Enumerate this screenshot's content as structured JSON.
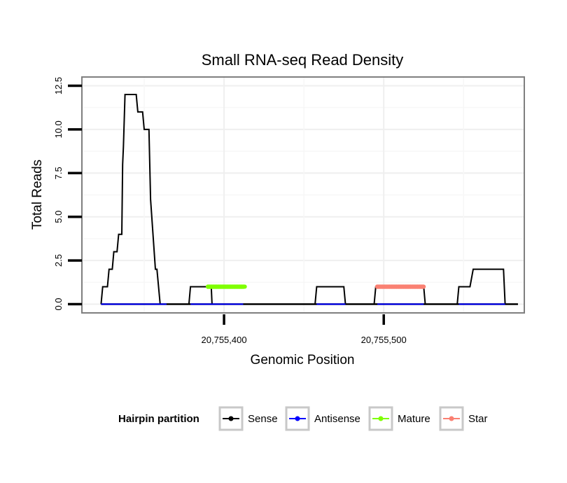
{
  "chart_data": {
    "type": "line",
    "title": "Small RNA-seq Read Density",
    "xlabel": "Genomic Position",
    "ylabel": "Total Reads",
    "xlim": [
      20755311,
      20755588
    ],
    "ylim": [
      -0.5,
      13.0
    ],
    "x_ticks": [
      {
        "value": 20755400,
        "label": "20,755,400"
      },
      {
        "value": 20755500,
        "label": "20,755,500"
      }
    ],
    "y_ticks": [
      {
        "value": 0.0,
        "label": "0.0"
      },
      {
        "value": 2.5,
        "label": "2.5"
      },
      {
        "value": 5.0,
        "label": "5.0"
      },
      {
        "value": 7.5,
        "label": "7.5"
      },
      {
        "value": 10.0,
        "label": "10.0"
      },
      {
        "value": 12.5,
        "label": "12.5"
      }
    ],
    "legend": {
      "title": "Hairpin partition",
      "position": "bottom",
      "entries": [
        {
          "name": "Sense",
          "color": "#000000"
        },
        {
          "name": "Antisense",
          "color": "#0000ff"
        },
        {
          "name": "Mature",
          "color": "#7fff00"
        },
        {
          "name": "Star",
          "color": "#fa8072"
        }
      ]
    },
    "series": [
      {
        "name": "Sense",
        "color": "#000000",
        "x": [
          20755323,
          20755324,
          20755327,
          20755328,
          20755330,
          20755331,
          20755333,
          20755334,
          20755336,
          20755336.5,
          20755337,
          20755338,
          20755339,
          20755342,
          20755345,
          20755346,
          20755349,
          20755350,
          20755353,
          20755354,
          20755357,
          20755358,
          20755360,
          20755364,
          20755365,
          20755378,
          20755379,
          20755392,
          20755392.5,
          20755412,
          20755413,
          20755457,
          20755458,
          20755475,
          20755476,
          20755494,
          20755495,
          20755525,
          20755526,
          20755546,
          20755547,
          20755554,
          20755556,
          20755575,
          20755576,
          20755584
        ],
        "values": [
          0,
          1,
          1,
          2,
          2,
          3,
          3,
          4,
          4,
          8,
          9,
          12,
          12,
          12,
          12,
          11,
          11,
          10,
          10,
          6,
          2,
          2,
          0,
          0,
          0,
          0,
          1,
          1,
          0,
          0,
          0,
          0,
          1,
          1,
          0,
          0,
          1,
          1,
          0,
          0,
          1,
          1,
          2,
          2,
          0,
          0
        ]
      },
      {
        "name": "Antisense",
        "color": "#0000ff",
        "segments": [
          [
            20755323,
            20755364
          ],
          [
            20755379,
            20755412
          ],
          [
            20755458,
            20755476
          ],
          [
            20755496,
            20755525
          ],
          [
            20755547,
            20755576
          ]
        ],
        "value": 0
      },
      {
        "name": "Mature",
        "color": "#7fff00",
        "range": [
          20755390,
          20755413
        ],
        "value": 1
      },
      {
        "name": "Star",
        "color": "#fa8072",
        "range": [
          20755496,
          20755525
        ],
        "value": 1
      }
    ]
  }
}
